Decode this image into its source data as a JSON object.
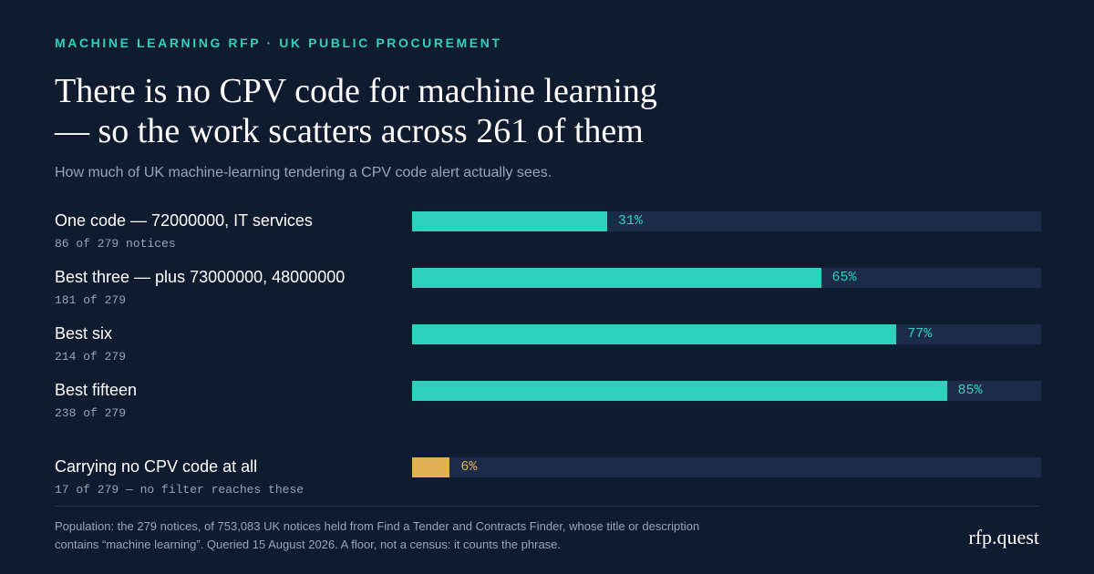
{
  "eyebrow": "MACHINE LEARNING RFP · UK PUBLIC PROCUREMENT",
  "chart_data": {
    "type": "bar",
    "orientation": "horizontal",
    "title": [
      "There is no CPV code for machine learning",
      "— so the work scatters across 261 of them"
    ],
    "subtitle": "How much of UK machine-learning tendering a CPV code alert actually sees.",
    "xlim": [
      0,
      100
    ],
    "grid": false,
    "categories": [
      "One code — 72000000, IT services",
      "Best three — plus 73000000, 48000000",
      "Best six",
      "Best fifteen",
      "Carrying no CPV code at all"
    ],
    "values": [
      31,
      65,
      77,
      85,
      6
    ],
    "value_labels": [
      "31%",
      "65%",
      "77%",
      "85%",
      "6%"
    ],
    "counts": [
      "86 of 279 notices",
      "181 of 279",
      "214 of 279",
      "238 of 279",
      "17 of 279 — no filter reaches these"
    ],
    "colors": [
      "#2fd1bd",
      "#2fd1bd",
      "#2fd1bd",
      "#2fd1bd",
      "#e2b156"
    ]
  },
  "colors": {
    "background": "#0f1b2e",
    "track": "#1c2c48",
    "accent": "#2fd1bd",
    "warning": "#e2b156",
    "muted_text": "#9aa6b6"
  },
  "footnote": "Population: the 279 notices, of 753,083 UK notices held from Find a Tender and Contracts Finder, whose title or description contains “machine learning”. Queried 15 August 2026. A floor, not a census: it counts the phrase.",
  "brand": "rfp.quest"
}
